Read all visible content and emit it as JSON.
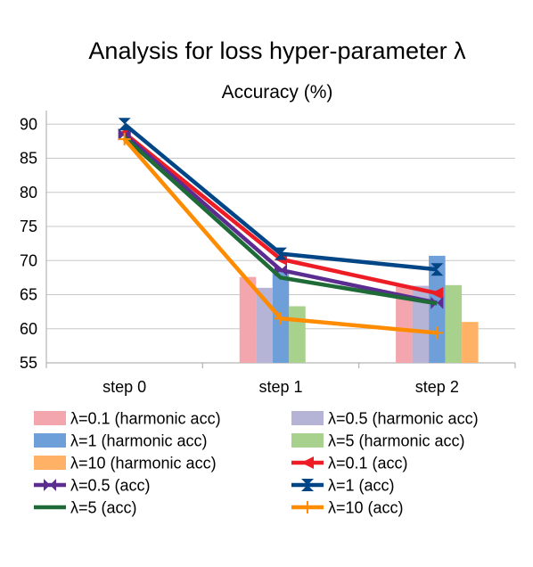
{
  "chart_data": {
    "type": "bar",
    "title": "Analysis for loss hyper-parameter λ",
    "subtitle": "Accuracy (%)",
    "categories": [
      "step 0",
      "step 1",
      "step 2"
    ],
    "ylim": [
      55,
      92
    ],
    "yticks": [
      55,
      60,
      65,
      70,
      75,
      80,
      85,
      90
    ],
    "grid": true,
    "legend_position": "bottom",
    "bar_series": [
      {
        "name": "λ=0.1 (harmonic acc)",
        "color": "#f4a6ae",
        "values": [
          null,
          67.6,
          66.3
        ]
      },
      {
        "name": "λ=0.5 (harmonic acc)",
        "color": "#b5b3d6",
        "values": [
          null,
          66.0,
          66.3
        ]
      },
      {
        "name": "λ=1 (harmonic acc)",
        "color": "#6f9fd8",
        "values": [
          null,
          68.4,
          70.7
        ]
      },
      {
        "name": "λ=5 (harmonic acc)",
        "color": "#a9d18e",
        "values": [
          null,
          63.3,
          66.4
        ]
      },
      {
        "name": "λ=10 (harmonic acc)",
        "color": "#ffb266",
        "values": [
          null,
          null,
          61.0
        ]
      }
    ],
    "line_series": [
      {
        "name": "λ=0.1 (acc)",
        "color": "#ee1c25",
        "marker": "tri-left",
        "values": [
          88.7,
          70.2,
          65.2
        ]
      },
      {
        "name": "λ=0.5 (acc)",
        "color": "#5c2d91",
        "marker": "bowtie",
        "values": [
          88.5,
          68.6,
          63.8
        ]
      },
      {
        "name": "λ=1 (acc)",
        "color": "#004586",
        "marker": "hourglass",
        "values": [
          90.0,
          71.0,
          68.7
        ]
      },
      {
        "name": "λ=5 (acc)",
        "color": "#1e6b37",
        "marker": "none",
        "values": [
          88.1,
          67.5,
          63.7
        ]
      },
      {
        "name": "λ=10 (acc)",
        "color": "#ff8c00",
        "marker": "plus",
        "values": [
          87.8,
          61.5,
          59.4
        ]
      }
    ]
  }
}
